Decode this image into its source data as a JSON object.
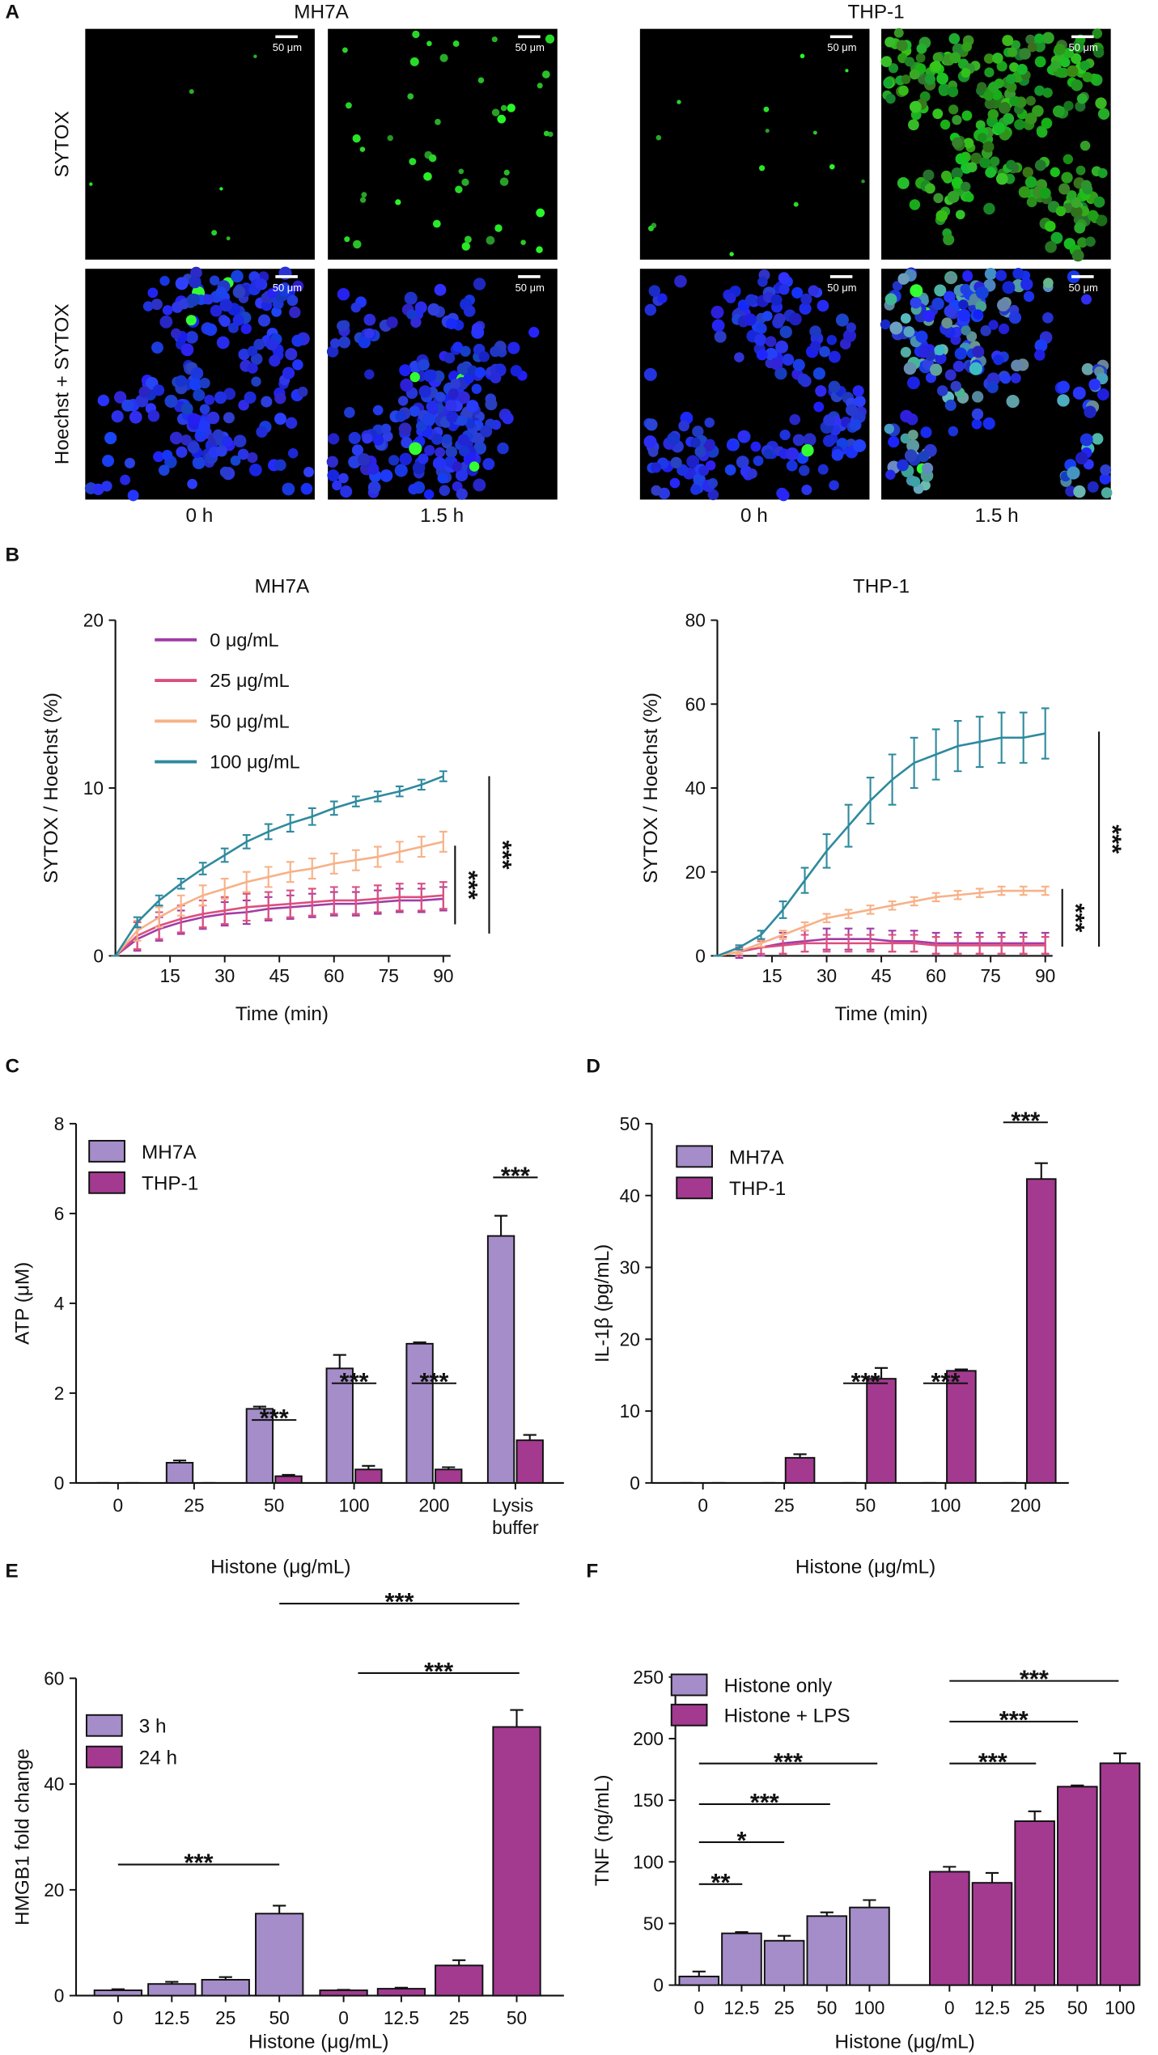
{
  "panel_labels": [
    "A",
    "B",
    "C",
    "D",
    "E",
    "F"
  ],
  "panel_a": {
    "columns": [
      "MH7A",
      "THP-1"
    ],
    "rows": [
      "SYTOX",
      "Hoechst + SYTOX"
    ],
    "times": [
      "0 h",
      "1.5 h"
    ],
    "scale_bar": "50 μm"
  },
  "chart_data": [
    {
      "type": "line",
      "title": "MH7A",
      "x_label": "Time (min)",
      "y_label": "SYTOX / Hoechst (%)",
      "x": [
        0,
        6,
        12,
        18,
        24,
        30,
        36,
        42,
        48,
        54,
        60,
        66,
        72,
        78,
        84,
        90
      ],
      "xlim": [
        0,
        92
      ],
      "xticks": [
        15,
        30,
        45,
        60,
        75,
        90
      ],
      "ylim": [
        0,
        20
      ],
      "yticks": [
        0,
        10,
        20
      ],
      "series": [
        {
          "name": "0 μg/mL",
          "color": "#a23ca6",
          "values": [
            0,
            1.0,
            1.6,
            2.0,
            2.3,
            2.5,
            2.6,
            2.8,
            2.9,
            3.0,
            3.1,
            3.1,
            3.2,
            3.3,
            3.3,
            3.4
          ],
          "errors": [
            0,
            0.7,
            0.7,
            0.7,
            0.7,
            0.7,
            0.7,
            0.7,
            0.7,
            0.7,
            0.7,
            0.7,
            0.7,
            0.7,
            0.7,
            0.7
          ]
        },
        {
          "name": "25 μg/mL",
          "color": "#dc4f7d",
          "values": [
            0,
            1.2,
            1.8,
            2.2,
            2.5,
            2.7,
            2.9,
            3.0,
            3.1,
            3.2,
            3.3,
            3.3,
            3.4,
            3.5,
            3.5,
            3.6
          ],
          "errors": [
            0,
            0.8,
            0.8,
            0.8,
            0.8,
            0.8,
            0.8,
            0.8,
            0.8,
            0.8,
            0.8,
            0.8,
            0.8,
            0.8,
            0.8,
            0.8
          ]
        },
        {
          "name": "50 μg/mL",
          "color": "#f7b188",
          "values": [
            0,
            1.5,
            2.3,
            3.0,
            3.6,
            4.0,
            4.4,
            4.7,
            5.0,
            5.2,
            5.5,
            5.7,
            5.9,
            6.2,
            6.5,
            6.8
          ],
          "errors": [
            0,
            0.6,
            0.6,
            0.6,
            0.6,
            0.6,
            0.6,
            0.6,
            0.6,
            0.6,
            0.6,
            0.6,
            0.6,
            0.6,
            0.6,
            0.6
          ]
        },
        {
          "name": "100 μg/mL",
          "color": "#2e8a9e",
          "values": [
            0,
            2.0,
            3.3,
            4.3,
            5.2,
            6.0,
            6.8,
            7.4,
            7.9,
            8.3,
            8.8,
            9.2,
            9.5,
            9.8,
            10.2,
            10.7
          ],
          "errors": [
            0,
            0.3,
            0.3,
            0.3,
            0.35,
            0.4,
            0.4,
            0.45,
            0.5,
            0.5,
            0.4,
            0.3,
            0.3,
            0.3,
            0.3,
            0.3
          ]
        }
      ],
      "annotations": [
        {
          "text": "***"
        },
        {
          "text": "***"
        }
      ]
    },
    {
      "type": "line",
      "title": "THP-1",
      "x_label": "Time (min)",
      "y_label": "SYTOX / Hoechst (%)",
      "x": [
        0,
        6,
        12,
        18,
        24,
        30,
        36,
        42,
        48,
        54,
        60,
        66,
        72,
        78,
        84,
        90
      ],
      "xlim": [
        0,
        92
      ],
      "xticks": [
        15,
        30,
        45,
        60,
        75,
        90
      ],
      "ylim": [
        0,
        80
      ],
      "yticks": [
        0,
        20,
        40,
        60,
        80
      ],
      "series": [
        {
          "name": "0 μg/mL",
          "color": "#a23ca6",
          "values": [
            0,
            1,
            2,
            3,
            3.5,
            4,
            4,
            4,
            3.5,
            3.5,
            3,
            3,
            3,
            3,
            3,
            3
          ],
          "errors": [
            0,
            1.5,
            2,
            2.5,
            2.5,
            2.5,
            2.5,
            2.5,
            2.5,
            2.5,
            2.5,
            2.5,
            2.5,
            2.5,
            2.5,
            2.5
          ]
        },
        {
          "name": "25 μg/mL",
          "color": "#dc4f7d",
          "values": [
            0,
            1,
            2,
            2.5,
            3,
            3,
            3,
            3,
            3,
            3,
            2.5,
            2.5,
            2.5,
            2.5,
            2.5,
            2.5
          ],
          "errors": [
            0,
            1,
            1.5,
            2,
            2,
            2,
            2,
            2,
            2,
            2,
            2,
            2,
            2,
            2,
            2,
            2
          ]
        },
        {
          "name": "50 μg/mL",
          "color": "#f7b188",
          "values": [
            0,
            1,
            3,
            5,
            7,
            9,
            10,
            11,
            12,
            13,
            14,
            14.5,
            15,
            15.5,
            15.5,
            15.5
          ],
          "errors": [
            0,
            0.5,
            0.8,
            1,
            1,
            1,
            1,
            1,
            1,
            1,
            1,
            1,
            1,
            1,
            1,
            1
          ]
        },
        {
          "name": "100 μg/mL",
          "color": "#2e8a9e",
          "values": [
            0,
            2,
            5,
            11,
            18,
            25,
            31,
            37,
            42,
            46,
            48,
            50,
            51,
            52,
            52,
            53
          ],
          "errors": [
            0,
            0.5,
            1,
            2,
            3,
            4,
            5,
            5.5,
            6,
            6,
            6,
            6,
            6,
            6,
            6,
            6
          ]
        }
      ],
      "annotations": [
        {
          "text": "***"
        },
        {
          "text": "***"
        }
      ]
    },
    {
      "type": "bar",
      "x_label": "Histone (μg/mL)",
      "y_label": "ATP (μM)",
      "categories": [
        "0",
        "25",
        "50",
        "100",
        "200",
        "Lysis buffer"
      ],
      "ylim": [
        0,
        8
      ],
      "yticks": [
        0,
        2,
        4,
        6,
        8
      ],
      "series": [
        {
          "name": "MH7A",
          "color": "#a48dc8",
          "values": [
            0,
            0.45,
            1.65,
            2.55,
            3.1,
            5.5
          ],
          "errors": [
            0,
            0.05,
            0.05,
            0.3,
            0.03,
            0.45
          ]
        },
        {
          "name": "THP-1",
          "color": "#a33a90",
          "values": [
            0,
            0,
            0.15,
            0.3,
            0.3,
            0.95
          ],
          "errors": [
            0,
            0,
            0.03,
            0.08,
            0.05,
            0.12
          ]
        }
      ],
      "annotations": [
        {
          "text": "***"
        },
        {
          "text": "***"
        },
        {
          "text": "***"
        },
        {
          "text": "***"
        }
      ]
    },
    {
      "type": "bar",
      "x_label": "Histone (μg/mL)",
      "y_label": "IL-1β (pg/mL)",
      "categories": [
        "0",
        "25",
        "50",
        "100",
        "200"
      ],
      "ylim": [
        0,
        50
      ],
      "yticks": [
        0,
        10,
        20,
        30,
        40,
        50
      ],
      "series": [
        {
          "name": "MH7A",
          "color": "#a48dc8",
          "values": [
            0,
            0,
            0,
            0,
            0
          ],
          "errors": [
            0,
            0,
            0,
            0,
            0
          ]
        },
        {
          "name": "THP-1",
          "color": "#a33a90",
          "values": [
            0,
            3.5,
            14.5,
            15.6,
            42.3
          ],
          "errors": [
            0,
            0.5,
            1.5,
            0.2,
            2.2
          ]
        }
      ],
      "annotations": [
        {
          "text": "***"
        },
        {
          "text": "***"
        },
        {
          "text": "***"
        }
      ]
    },
    {
      "type": "bar",
      "x_label": "Histone (μg/mL)",
      "y_label": "HMGB1 fold change",
      "categories": [
        "0",
        "12.5",
        "25",
        "50"
      ],
      "ylim": [
        0,
        60
      ],
      "yticks": [
        0,
        20,
        40,
        60
      ],
      "series": [
        {
          "name": "3 h",
          "color": "#a48dc8",
          "values": [
            1,
            2.2,
            3,
            15.5
          ],
          "errors": [
            0.2,
            0.4,
            0.5,
            1.5
          ]
        },
        {
          "name": "24 h",
          "color": "#a33a90",
          "values": [
            1,
            1.3,
            5.7,
            50.8
          ],
          "errors": [
            0.1,
            0.2,
            1,
            3.2
          ]
        }
      ],
      "annotations": [
        {
          "text": "***"
        },
        {
          "text": "***"
        },
        {
          "text": "***"
        }
      ]
    },
    {
      "type": "bar",
      "x_label": "Histone (μg/mL)",
      "y_label": "TNF (ng/mL)",
      "categories": [
        "0",
        "12.5",
        "25",
        "50",
        "100"
      ],
      "ylim": [
        0,
        250
      ],
      "yticks": [
        0,
        50,
        100,
        150,
        200,
        250
      ],
      "series": [
        {
          "name": "Histone only",
          "color": "#a48dc8",
          "values": [
            7,
            42,
            36,
            56,
            63
          ],
          "errors": [
            4,
            1,
            4,
            3,
            6
          ]
        },
        {
          "name": "Histone + LPS",
          "color": "#a33a90",
          "values": [
            92,
            83,
            133,
            161,
            180
          ],
          "errors": [
            4,
            8,
            8,
            1,
            8
          ]
        }
      ],
      "annotations": [
        {
          "text": "**"
        },
        {
          "text": "*"
        },
        {
          "text": "***"
        },
        {
          "text": "***"
        },
        {
          "text": "***"
        },
        {
          "text": "***"
        },
        {
          "text": "***"
        }
      ]
    }
  ]
}
